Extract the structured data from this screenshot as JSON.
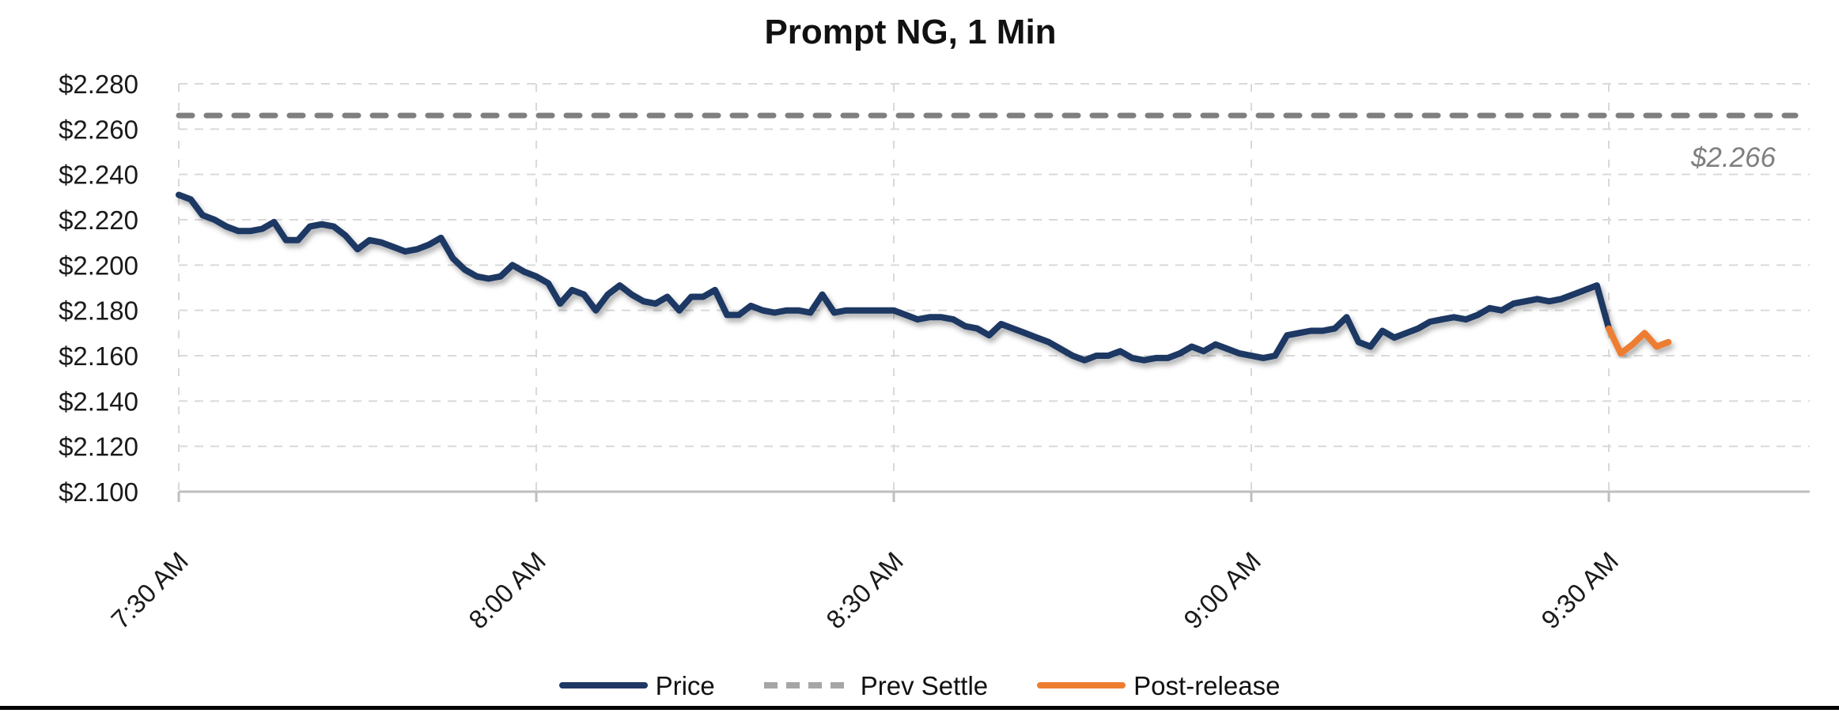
{
  "title": "Prompt NG, 1 Min",
  "prev_settle_annotation": "$2.266",
  "legend": {
    "items": [
      {
        "label": "Price",
        "color": "#1F3864",
        "swatch_color": "#1F3864",
        "style": "solid"
      },
      {
        "label": "Prev Settle",
        "color": "#7F7F7F",
        "swatch_color": "#A6A6A6",
        "style": "dashed"
      },
      {
        "label": "Post-release",
        "color": "#ED7D31",
        "swatch_color": "#ED7D31",
        "style": "solid"
      }
    ]
  },
  "colors": {
    "price_line": "#1F3864",
    "post_release_line": "#ED7D31",
    "prev_settle_line": "#7F7F7F",
    "gridline": "#D9D9D9",
    "axis_line": "#BFBFBF",
    "axis_text": "#1A1A1A",
    "annotation_text": "#7F7F7F",
    "background": "#FFFFFF"
  },
  "chart_data": {
    "type": "line",
    "title": "Prompt NG, 1 Min",
    "grid": true,
    "legend_position": "bottom",
    "x_axis": {
      "tick_labels": [
        "7:30 AM",
        "8:00 AM",
        "8:30 AM",
        "9:00 AM",
        "9:30 AM"
      ],
      "tick_minutes": [
        0,
        30,
        60,
        90,
        120
      ],
      "interval_minutes": 1,
      "range_minutes": [
        0,
        136
      ]
    },
    "y_axis": {
      "tick_labels": [
        "$2.280",
        "$2.260",
        "$2.240",
        "$2.220",
        "$2.200",
        "$2.180",
        "$2.160",
        "$2.140",
        "$2.120",
        "$2.100"
      ],
      "tick_values": [
        2.28,
        2.26,
        2.24,
        2.22,
        2.2,
        2.18,
        2.16,
        2.14,
        2.12,
        2.1
      ],
      "min": 2.1,
      "max": 2.28,
      "step": 0.02,
      "format": "$#.000"
    },
    "series": [
      {
        "name": "Price",
        "type": "line",
        "color": "#1F3864",
        "start_minute": 0,
        "interval_minutes": 1,
        "values": [
          2.231,
          2.229,
          2.222,
          2.22,
          2.217,
          2.215,
          2.215,
          2.216,
          2.219,
          2.211,
          2.211,
          2.217,
          2.218,
          2.217,
          2.213,
          2.207,
          2.211,
          2.21,
          2.208,
          2.206,
          2.207,
          2.209,
          2.212,
          2.203,
          2.198,
          2.195,
          2.194,
          2.195,
          2.2,
          2.197,
          2.195,
          2.192,
          2.183,
          2.189,
          2.187,
          2.18,
          2.187,
          2.191,
          2.187,
          2.184,
          2.183,
          2.186,
          2.18,
          2.186,
          2.186,
          2.189,
          2.178,
          2.178,
          2.182,
          2.18,
          2.179,
          2.18,
          2.18,
          2.179,
          2.187,
          2.179,
          2.18,
          2.18,
          2.18,
          2.18,
          2.18,
          2.178,
          2.176,
          2.177,
          2.177,
          2.176,
          2.173,
          2.172,
          2.169,
          2.174,
          2.172,
          2.17,
          2.168,
          2.166,
          2.163,
          2.16,
          2.158,
          2.16,
          2.16,
          2.162,
          2.159,
          2.158,
          2.159,
          2.159,
          2.161,
          2.164,
          2.162,
          2.165,
          2.163,
          2.161,
          2.16,
          2.159,
          2.16,
          2.169,
          2.17,
          2.171,
          2.171,
          2.172,
          2.177,
          2.166,
          2.164,
          2.171,
          2.168,
          2.17,
          2.172,
          2.175,
          2.176,
          2.177,
          2.176,
          2.178,
          2.181,
          2.18,
          2.183,
          2.184,
          2.185,
          2.184,
          2.185,
          2.187,
          2.189,
          2.191,
          2.172
        ]
      },
      {
        "name": "Prev Settle",
        "type": "hline",
        "color": "#7F7F7F",
        "dashed": true,
        "value": 2.266,
        "label": "$2.266"
      },
      {
        "name": "Post-release",
        "type": "line",
        "color": "#ED7D31",
        "start_minute": 120,
        "interval_minutes": 1,
        "values": [
          2.172,
          2.161,
          2.165,
          2.17,
          2.164,
          2.166
        ]
      }
    ]
  }
}
